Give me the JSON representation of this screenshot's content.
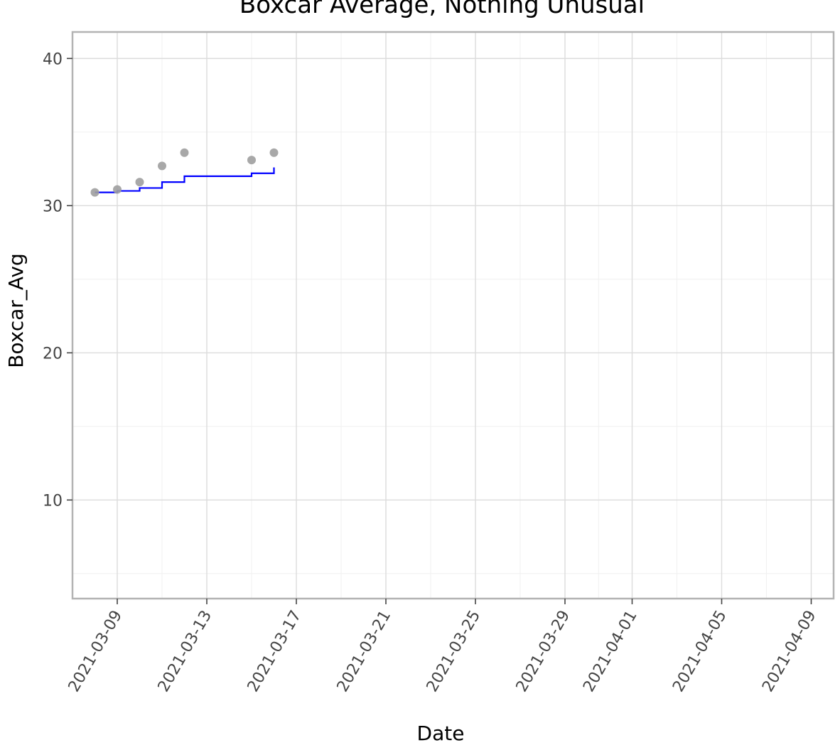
{
  "chart_data": {
    "type": "scatter",
    "title": "Boxcar Average, Nothing Unusual",
    "xlabel": "Date",
    "ylabel": "Boxcar_Avg",
    "x_axis_type": "date",
    "xlim": [
      "2021-03-07",
      "2021-04-10"
    ],
    "ylim": [
      3.3,
      41.8
    ],
    "x_ticks": [
      "2021-03-09",
      "2021-03-13",
      "2021-03-17",
      "2021-03-21",
      "2021-03-25",
      "2021-03-29",
      "2021-04-01",
      "2021-04-05",
      "2021-04-09"
    ],
    "y_ticks": [
      10,
      20,
      30,
      40
    ],
    "grid": true,
    "series": [
      {
        "kind": "points",
        "color": "#9e9e9e",
        "points": [
          {
            "x": "2021-03-08",
            "y": 30.9
          },
          {
            "x": "2021-03-09",
            "y": 31.1
          },
          {
            "x": "2021-03-10",
            "y": 31.6
          },
          {
            "x": "2021-03-11",
            "y": 32.7
          },
          {
            "x": "2021-03-12",
            "y": 33.6
          },
          {
            "x": "2021-03-15",
            "y": 33.1
          },
          {
            "x": "2021-03-16",
            "y": 33.6
          }
        ]
      },
      {
        "kind": "step",
        "color": "#0000ff",
        "points": [
          {
            "x": "2021-03-08",
            "y": 30.9
          },
          {
            "x": "2021-03-09",
            "y": 31.0
          },
          {
            "x": "2021-03-10",
            "y": 31.2
          },
          {
            "x": "2021-03-11",
            "y": 31.6
          },
          {
            "x": "2021-03-12",
            "y": 32.0
          },
          {
            "x": "2021-03-15",
            "y": 32.2
          },
          {
            "x": "2021-03-16",
            "y": 32.6
          }
        ]
      }
    ]
  }
}
